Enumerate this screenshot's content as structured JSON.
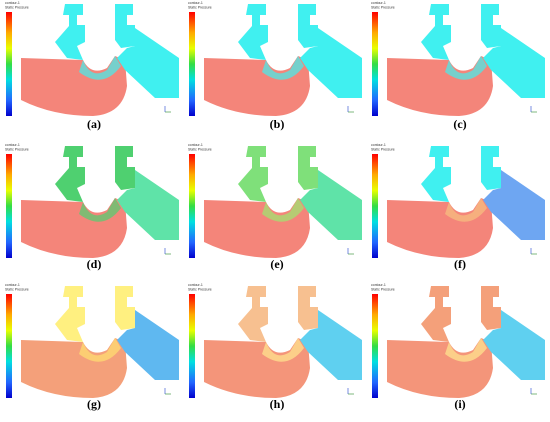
{
  "contour_name": "contour-1",
  "legend_title": "Static Pressure",
  "labels": [
    "(a)",
    "(b)",
    "(c)",
    "(d)",
    "(e)",
    "(f)",
    "(g)",
    "(h)",
    "(i)"
  ]
}
